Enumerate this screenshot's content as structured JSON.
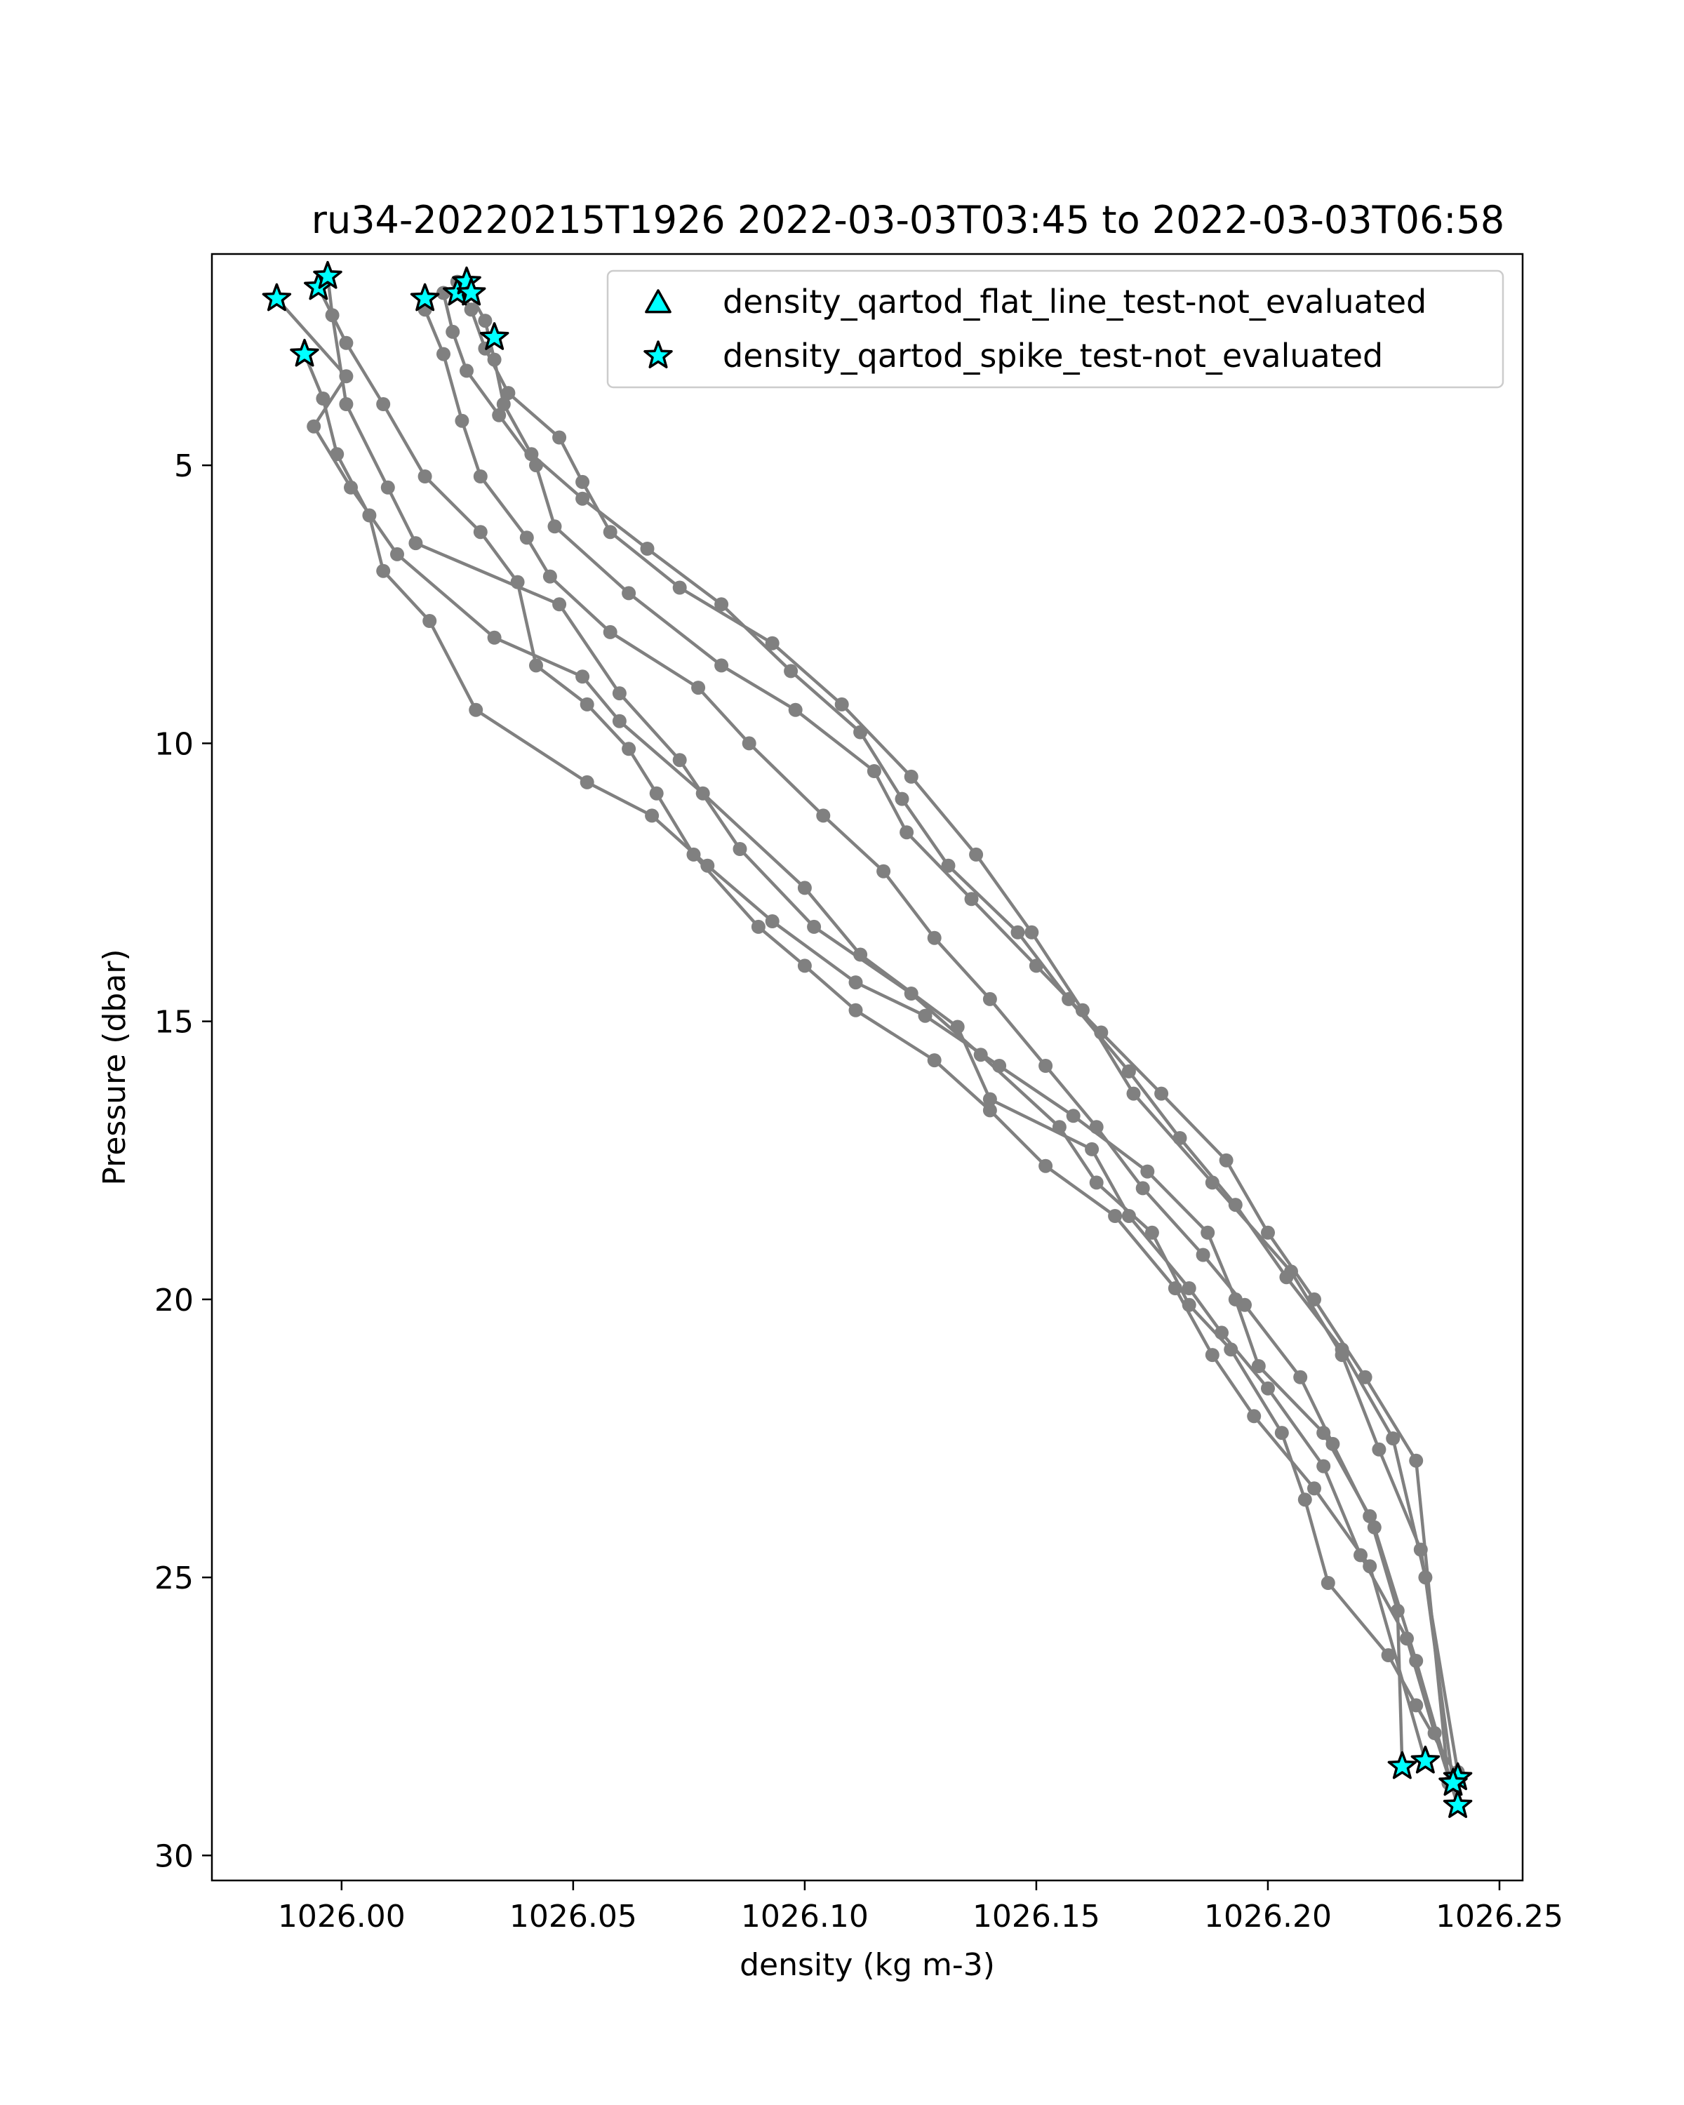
{
  "chart_data": {
    "type": "scatter",
    "title": "ru34-20220215T1926 2022-03-03T03:45 to 2022-03-03T06:58",
    "xlabel": "density (kg m-3)",
    "ylabel": "Pressure (dbar)",
    "xlim": [
      1025.972,
      1026.255
    ],
    "ylim": [
      30.45,
      1.2
    ],
    "y_inverted": true,
    "grid": false,
    "legend_position": "top-right",
    "xticks": [
      {
        "value": 1026.0,
        "label": "1026.00"
      },
      {
        "value": 1026.05,
        "label": "1026.05"
      },
      {
        "value": 1026.1,
        "label": "1026.10"
      },
      {
        "value": 1026.15,
        "label": "1026.15"
      },
      {
        "value": 1026.2,
        "label": "1026.20"
      },
      {
        "value": 1026.25,
        "label": "1026.25"
      }
    ],
    "yticks": [
      {
        "value": 5,
        "label": "5"
      },
      {
        "value": 10,
        "label": "10"
      },
      {
        "value": 15,
        "label": "15"
      },
      {
        "value": 20,
        "label": "20"
      },
      {
        "value": 25,
        "label": "25"
      },
      {
        "value": 30,
        "label": "30"
      }
    ],
    "profile_color": "#808080",
    "flag_color": "#00ffff",
    "profiles": [
      {
        "x": [
          1025.986,
          1026.001,
          1025.994,
          1026.002,
          1026.012,
          1026.033,
          1026.052,
          1026.06,
          1026.078,
          1026.1,
          1026.112,
          1026.133,
          1026.14,
          1026.162,
          1026.17,
          1026.183,
          1026.19,
          1026.2,
          1026.212,
          1026.22,
          1026.23,
          1026.236,
          1026.241
        ],
        "y": [
          2.0,
          3.4,
          4.3,
          5.4,
          6.6,
          8.1,
          8.8,
          9.6,
          10.9,
          12.6,
          13.8,
          15.1,
          16.4,
          17.3,
          18.5,
          19.8,
          20.6,
          21.6,
          23.0,
          24.6,
          26.1,
          27.8,
          29.1
        ]
      },
      {
        "x": [
          1025.997,
          1025.998,
          1026.001,
          1026.01,
          1026.016,
          1026.047,
          1026.06,
          1026.073,
          1026.086,
          1026.102,
          1026.123,
          1026.138,
          1026.155,
          1026.163,
          1026.175,
          1026.183,
          1026.192,
          1026.203,
          1026.208,
          1026.213,
          1026.226,
          1026.232,
          1026.241
        ],
        "y": [
          1.6,
          2.3,
          3.9,
          5.4,
          6.4,
          7.5,
          9.1,
          10.3,
          11.9,
          13.3,
          14.5,
          15.6,
          16.9,
          17.9,
          18.8,
          20.1,
          20.9,
          22.4,
          23.6,
          25.1,
          26.4,
          27.3,
          28.6
        ]
      },
      {
        "x": [
          1025.992,
          1025.996,
          1025.999,
          1026.006,
          1026.009,
          1026.019,
          1026.029,
          1026.053,
          1026.067,
          1026.079,
          1026.093,
          1026.111,
          1026.126,
          1026.142,
          1026.158,
          1026.174,
          1026.187,
          1026.193,
          1026.198,
          1026.212,
          1026.222,
          1026.228,
          1026.229
        ],
        "y": [
          3.0,
          3.8,
          4.8,
          5.9,
          6.9,
          7.8,
          9.4,
          10.7,
          11.3,
          12.2,
          13.2,
          14.3,
          14.9,
          15.8,
          16.7,
          17.7,
          18.8,
          20.0,
          21.2,
          22.4,
          23.9,
          25.6,
          28.4
        ]
      },
      {
        "x": [
          1025.995,
          1026.001,
          1026.009,
          1026.018,
          1026.03,
          1026.038,
          1026.042,
          1026.053,
          1026.062,
          1026.068,
          1026.076,
          1026.09,
          1026.1,
          1026.111,
          1026.128,
          1026.14,
          1026.152,
          1026.167,
          1026.18,
          1026.188,
          1026.197,
          1026.21,
          1026.222,
          1026.234
        ],
        "y": [
          1.8,
          2.8,
          3.9,
          5.2,
          6.2,
          7.1,
          8.6,
          9.3,
          10.1,
          10.9,
          12.0,
          13.3,
          14.0,
          14.8,
          15.7,
          16.6,
          17.6,
          18.5,
          19.8,
          21.0,
          22.1,
          23.4,
          24.8,
          28.3
        ]
      },
      {
        "x": [
          1026.018,
          1026.022,
          1026.026,
          1026.03,
          1026.04,
          1026.045,
          1026.058,
          1026.077,
          1026.088,
          1026.104,
          1026.117,
          1026.128,
          1026.14,
          1026.152,
          1026.163,
          1026.173,
          1026.186,
          1026.195,
          1026.207,
          1026.214,
          1026.223,
          1026.232,
          1026.241
        ],
        "y": [
          2.2,
          3.0,
          4.2,
          5.2,
          6.3,
          7.0,
          8.0,
          9.0,
          10.0,
          11.3,
          12.3,
          13.5,
          14.6,
          15.8,
          16.9,
          18.0,
          19.2,
          20.1,
          21.4,
          22.6,
          24.1,
          26.5,
          29.1
        ]
      },
      {
        "x": [
          1026.022,
          1026.024,
          1026.027,
          1026.034,
          1026.042,
          1026.046,
          1026.062,
          1026.082,
          1026.098,
          1026.115,
          1026.122,
          1026.136,
          1026.15,
          1026.164,
          1026.177,
          1026.191,
          1026.2,
          1026.21,
          1026.221,
          1026.232,
          1026.239
        ],
        "y": [
          1.9,
          2.6,
          3.3,
          4.1,
          5.0,
          6.1,
          7.3,
          8.6,
          9.4,
          10.5,
          11.6,
          12.8,
          14.0,
          15.2,
          16.3,
          17.5,
          18.8,
          20.0,
          21.4,
          22.9,
          28.7
        ]
      },
      {
        "x": [
          1026.025,
          1026.028,
          1026.031,
          1026.036,
          1026.047,
          1026.052,
          1026.058,
          1026.073,
          1026.093,
          1026.108,
          1026.123,
          1026.137,
          1026.149,
          1026.16,
          1026.171,
          1026.188,
          1026.205,
          1026.216,
          1026.224,
          1026.233,
          1026.241
        ],
        "y": [
          1.7,
          2.2,
          2.9,
          3.7,
          4.5,
          5.3,
          6.2,
          7.2,
          8.2,
          9.3,
          10.6,
          12.0,
          13.4,
          14.8,
          16.3,
          17.9,
          19.5,
          21.0,
          22.7,
          24.5,
          28.5
        ]
      },
      {
        "x": [
          1026.027,
          1026.031,
          1026.033,
          1026.035,
          1026.041,
          1026.052,
          1026.066,
          1026.082,
          1026.097,
          1026.112,
          1026.121,
          1026.131,
          1026.146,
          1026.157,
          1026.17,
          1026.181,
          1026.193,
          1026.204,
          1026.216,
          1026.227,
          1026.234,
          1026.24
        ],
        "y": [
          1.8,
          2.4,
          3.1,
          3.9,
          4.8,
          5.6,
          6.5,
          7.5,
          8.7,
          9.8,
          11.0,
          12.2,
          13.4,
          14.6,
          15.9,
          17.1,
          18.3,
          19.6,
          20.9,
          22.5,
          25.0,
          28.7
        ]
      }
    ],
    "series": [
      {
        "name": "density_qartod_flat_line_test-not_evaluated",
        "marker": "triangle",
        "x": [],
        "y": []
      },
      {
        "name": "density_qartod_spike_test-not_evaluated",
        "marker": "star",
        "x": [
          1025.986,
          1025.995,
          1025.997,
          1025.992,
          1026.018,
          1026.025,
          1026.027,
          1026.028,
          1026.033,
          1026.229,
          1026.234,
          1026.241,
          1026.24,
          1026.241
        ],
        "y": [
          2.0,
          1.8,
          1.6,
          3.0,
          2.0,
          1.9,
          1.7,
          1.9,
          2.7,
          28.4,
          28.3,
          28.6,
          28.7,
          29.1
        ]
      }
    ]
  }
}
